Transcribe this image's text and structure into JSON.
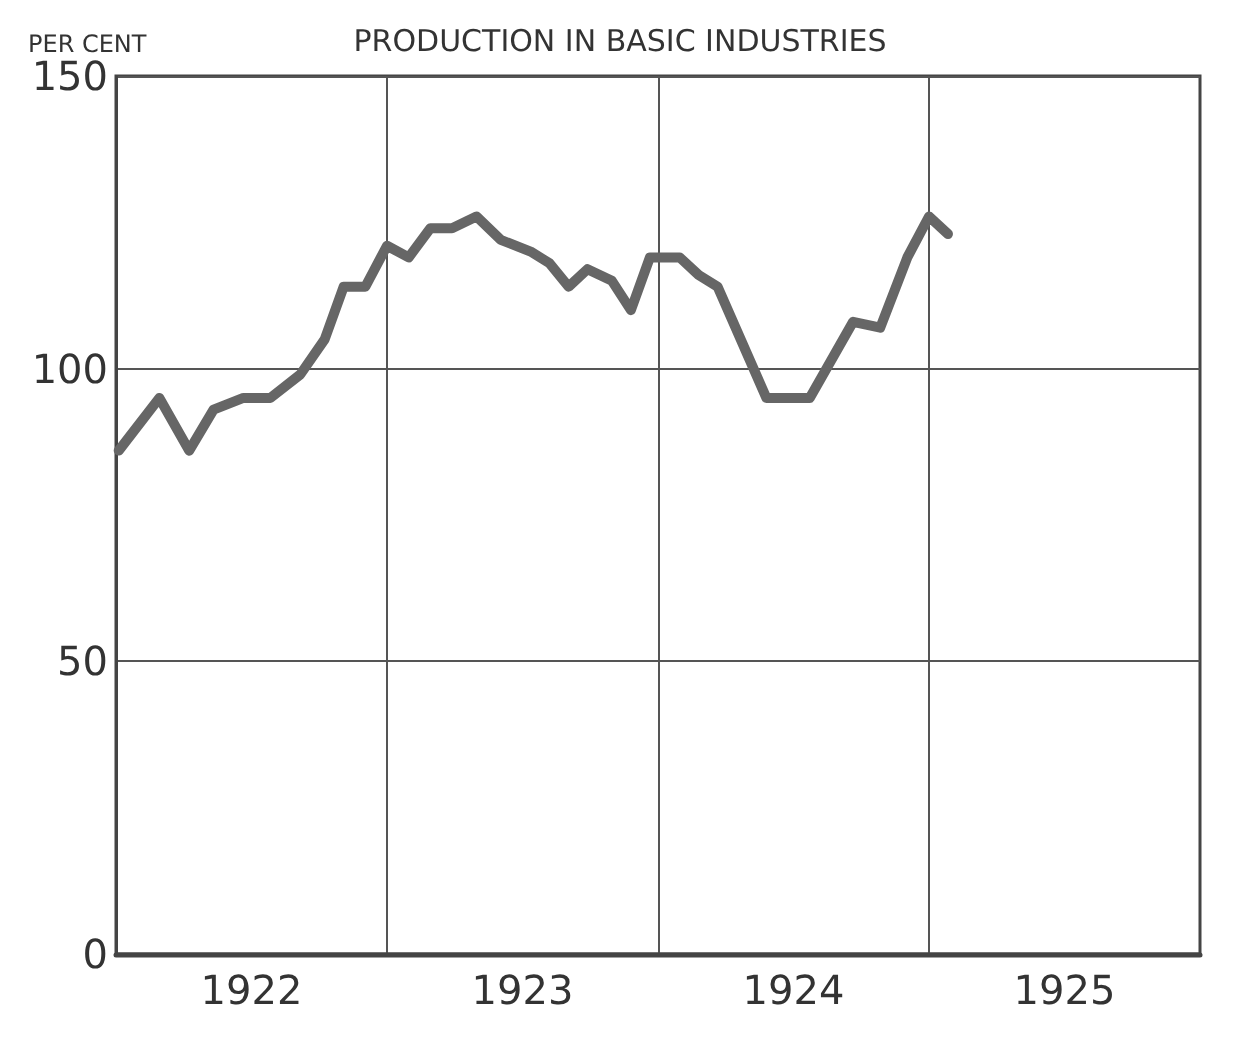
{
  "chart_data": {
    "type": "line",
    "title": "PRODUCTION IN BASIC INDUSTRIES",
    "ylabel": "PER CENT",
    "x": [
      1922.01,
      1922.16,
      1922.27,
      1922.36,
      1922.47,
      1922.57,
      1922.68,
      1922.77,
      1922.84,
      1922.92,
      1923.0,
      1923.08,
      1923.16,
      1923.24,
      1923.33,
      1923.42,
      1923.53,
      1923.6,
      1923.67,
      1923.74,
      1923.83,
      1923.9,
      1923.97,
      1924.08,
      1924.15,
      1924.22,
      1924.4,
      1924.56,
      1924.72,
      1924.82,
      1924.92,
      1925.0,
      1925.07
    ],
    "series": [
      {
        "color": "#666666",
        "values": [
          86,
          95,
          86,
          93,
          95,
          95,
          99,
          105,
          114,
          114,
          121,
          119,
          124,
          124,
          126,
          122,
          120,
          118,
          114,
          117,
          115,
          110,
          119,
          119,
          116,
          114,
          95,
          95,
          108,
          107,
          119,
          126,
          123
        ]
      }
    ],
    "xlim": [
      1922,
      1926
    ],
    "ylim": [
      0,
      150
    ],
    "xticks": [
      {
        "value": 1922.5,
        "label": "1922"
      },
      {
        "value": 1923,
        "label": null
      },
      {
        "value": 1923.5,
        "label": "1923"
      },
      {
        "value": 1924,
        "label": null
      },
      {
        "value": 1924.5,
        "label": "1924"
      },
      {
        "value": 1925,
        "label": null
      },
      {
        "value": 1925.5,
        "label": "1925"
      }
    ],
    "yticks": [
      0,
      50,
      100,
      150
    ],
    "grid": true,
    "marker": "none",
    "line_style": "solid"
  }
}
